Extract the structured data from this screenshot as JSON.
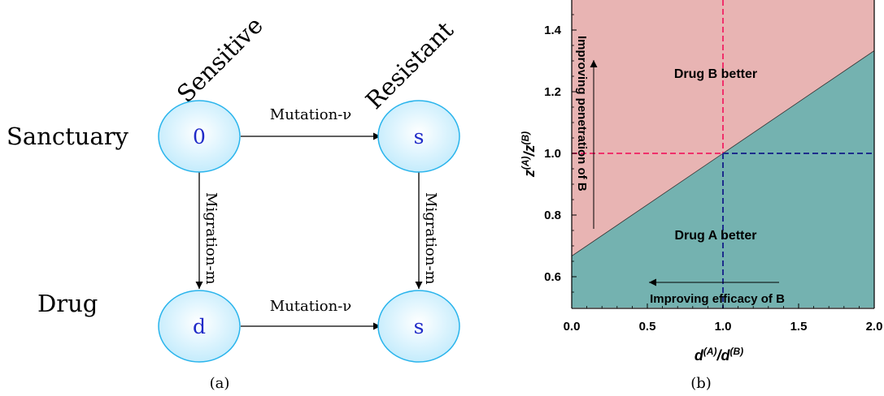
{
  "diagram": {
    "caption": "(a)",
    "column_labels": {
      "sensitive": "Sensitive",
      "resistant": "Resistant"
    },
    "row_labels": {
      "sanctuary": "Sanctuary",
      "drug": "Drug"
    },
    "nodes": {
      "sanctuary_sensitive": "0",
      "sanctuary_resistant": "s",
      "drug_sensitive": "d",
      "drug_resistant": "s"
    },
    "edges": {
      "mutation_top": "Mutation-ν",
      "mutation_bottom": "Mutation-ν",
      "migration_left": "Migration-m",
      "migration_right": "Migration-m"
    },
    "colors": {
      "node_fill": "#bfeafc",
      "node_stroke": "#29b4ec",
      "node_text": "#1f2ac8"
    }
  },
  "chart_data": {
    "type": "area",
    "caption": "(b)",
    "xlabel": "d(A)/d(B)",
    "ylabel": "z(A)/z(B)",
    "xlim": [
      0,
      2
    ],
    "ylim": [
      0.5,
      1.5
    ],
    "xticks": [
      0,
      0.5,
      1,
      1.5,
      2
    ],
    "xtick_labels": [
      "0.0",
      "0.5",
      "1.0",
      "1.5",
      "2.0"
    ],
    "yticks": [
      0.6,
      0.8,
      1.0,
      1.2,
      1.4
    ],
    "ytick_labels": [
      "0.6",
      "0.8",
      "1.0",
      "1.2",
      "1.4"
    ],
    "boundary": {
      "x": [
        0,
        2
      ],
      "y": [
        0.667,
        1.333
      ]
    },
    "region_labels": {
      "upper": "Drug B better",
      "lower": "Drug A better"
    },
    "reference_lines": {
      "x": 1.0,
      "y": 1.0
    },
    "annotations": {
      "vertical_arrow": "Improving penetration of B",
      "horizontal_arrow": "Improving efficacy of B"
    },
    "colors": {
      "upper_region": "#e8b4b3",
      "lower_region": "#74b2b0",
      "dash_upper": "#f0306b",
      "dash_lower": "#1d2d8c"
    }
  }
}
